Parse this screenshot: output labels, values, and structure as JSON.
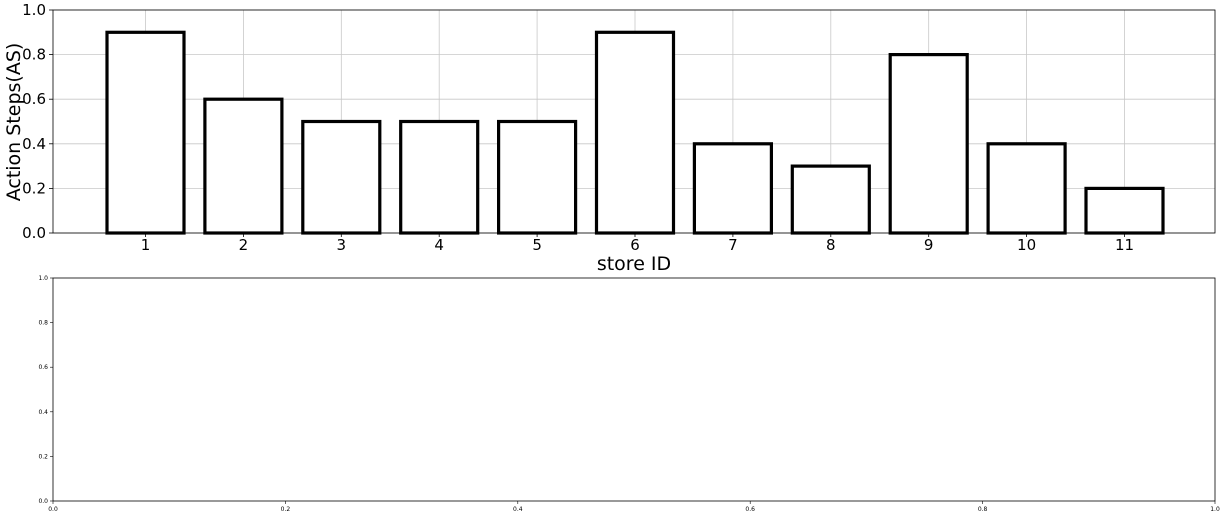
{
  "chart_data": [
    {
      "type": "bar",
      "categories": [
        "1",
        "2",
        "3",
        "4",
        "5",
        "6",
        "7",
        "8",
        "9",
        "10",
        "11"
      ],
      "values": [
        0.9,
        0.6,
        0.5,
        0.5,
        0.5,
        0.9,
        0.4,
        0.3,
        0.8,
        0.4,
        0.2
      ],
      "xlabel": "store ID",
      "ylabel": "Action Steps(AS)",
      "ylim": [
        0,
        1.0
      ],
      "yticks": [
        "0.0",
        "0.2",
        "0.4",
        "0.6",
        "0.8",
        "1.0"
      ],
      "grid": true,
      "bar_fill": "#ffffff",
      "bar_edge": "#000000"
    },
    {
      "type": "empty",
      "xlim": [
        0,
        1.0
      ],
      "ylim": [
        0,
        1.0
      ],
      "xticks": [
        "0.0",
        "0.2",
        "0.4",
        "0.6",
        "0.8",
        "1.0"
      ],
      "yticks": [
        "0.0",
        "0.2",
        "0.4",
        "0.6",
        "0.8",
        "1.0"
      ],
      "grid": false
    }
  ]
}
